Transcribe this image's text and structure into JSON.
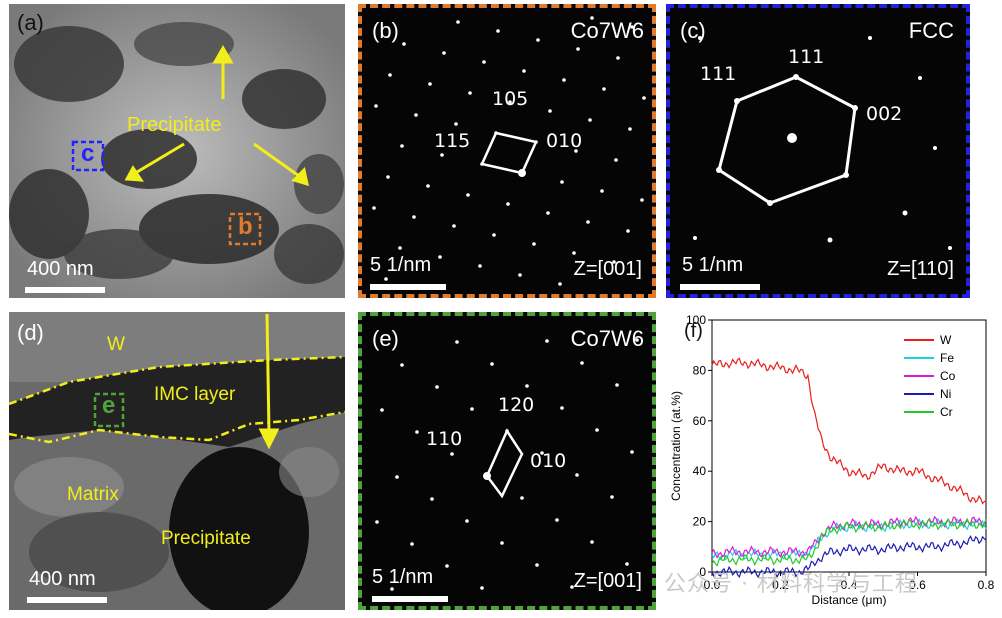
{
  "panel_a": {
    "label": "(a)",
    "precipitate_label": "Precipitate",
    "box_c_label": "c",
    "box_b_label": "b",
    "scale_bar": "400 nm"
  },
  "panel_b": {
    "label": "(b)",
    "phase": "Co7W6",
    "indices": [
      "105",
      "115",
      "010"
    ],
    "scale_bar": "5 1/nm",
    "zone_axis": "Z=[001]",
    "border_color": "#e07b2e"
  },
  "panel_c": {
    "label": "(c)",
    "phase": "FCC",
    "indices": [
      "111",
      "111",
      "002"
    ],
    "scale_bar": "5 1/nm",
    "zone_axis": "Z=[110]",
    "border_color": "#2222d8"
  },
  "panel_d": {
    "label": "(d)",
    "w_label": "W",
    "imc_label": "IMC layer",
    "box_e_label": "e",
    "matrix_label": "Matrix",
    "precipitate_label": "Precipitate",
    "scale_bar": "400 nm"
  },
  "panel_e": {
    "label": "(e)",
    "phase": "Co7W6",
    "indices": [
      "120",
      "110",
      "010"
    ],
    "scale_bar": "5 1/nm",
    "zone_axis": "Z=[001]",
    "border_color": "#4fa33a"
  },
  "panel_f": {
    "label": "(f)"
  },
  "chart_data": {
    "type": "line",
    "title": "",
    "xlabel": "Distance (μm)",
    "ylabel": "Concentration (at.%)",
    "xlim": [
      0.0,
      0.8
    ],
    "ylim": [
      0,
      100
    ],
    "xticks": [
      "0.0",
      "0.2",
      "0.4",
      "0.6",
      "0.8"
    ],
    "yticks": [
      "0",
      "20",
      "40",
      "60",
      "80",
      "100"
    ],
    "legend_position": "top-right",
    "x": [
      0.0,
      0.05,
      0.1,
      0.15,
      0.2,
      0.25,
      0.28,
      0.3,
      0.32,
      0.35,
      0.4,
      0.45,
      0.5,
      0.55,
      0.6,
      0.65,
      0.7,
      0.75,
      0.8
    ],
    "series": [
      {
        "name": "W",
        "color": "#e8201c",
        "values": [
          82,
          83,
          83,
          82,
          81,
          80,
          78,
          62,
          52,
          45,
          40,
          38,
          42,
          40,
          40,
          37,
          34,
          30,
          27
        ]
      },
      {
        "name": "Fe",
        "color": "#16d6e0",
        "values": [
          6,
          7,
          7,
          7,
          7,
          7,
          8,
          10,
          14,
          17,
          18,
          18,
          18,
          19,
          19,
          19,
          19,
          19,
          19
        ]
      },
      {
        "name": "Co",
        "color": "#e01adc",
        "values": [
          7,
          8,
          8,
          8,
          8,
          8,
          8,
          11,
          15,
          18,
          19,
          19,
          19,
          20,
          20,
          20,
          20,
          20,
          20
        ]
      },
      {
        "name": "Ni",
        "color": "#1c1cb0",
        "values": [
          0,
          0,
          0,
          0,
          0,
          0,
          1,
          4,
          6,
          8,
          9,
          9,
          9,
          10,
          10,
          10,
          11,
          12,
          14
        ]
      },
      {
        "name": "Cr",
        "color": "#28c828",
        "values": [
          4,
          5,
          5,
          5,
          5,
          5,
          5,
          9,
          14,
          17,
          18,
          18,
          18,
          19,
          19,
          19,
          19,
          19,
          19
        ]
      }
    ]
  },
  "watermark": "公众号 · 材料科学与工程"
}
